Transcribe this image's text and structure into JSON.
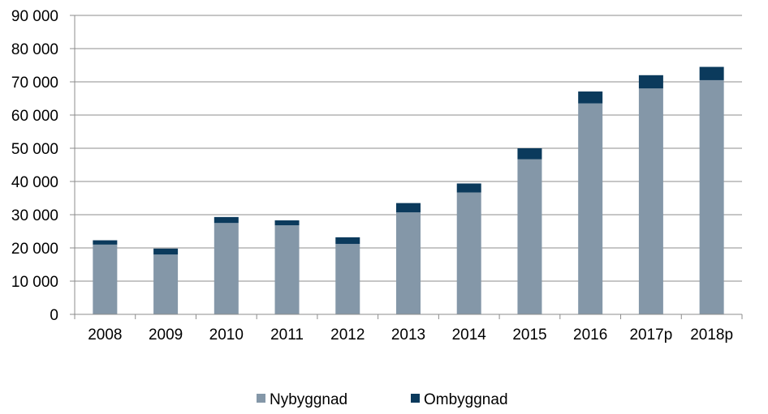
{
  "chart_data": {
    "type": "bar",
    "stacked": true,
    "categories": [
      "2008",
      "2009",
      "2010",
      "2011",
      "2012",
      "2013",
      "2014",
      "2015",
      "2016",
      "2017p",
      "2018p"
    ],
    "series": [
      {
        "name": "Nybyggnad",
        "color": "#8497a8",
        "values": [
          21000,
          18000,
          27500,
          26800,
          21200,
          30700,
          36700,
          46700,
          63500,
          68000,
          70500
        ]
      },
      {
        "name": "Ombyggnad",
        "color": "#0b3a5c",
        "values": [
          1300,
          1800,
          1800,
          1500,
          2000,
          2800,
          2700,
          3300,
          3600,
          4000,
          4000
        ]
      }
    ],
    "title": "",
    "xlabel": "",
    "ylabel": "",
    "ylim": [
      0,
      90000
    ],
    "yticks": [
      0,
      10000,
      20000,
      30000,
      40000,
      50000,
      60000,
      70000,
      80000,
      90000
    ],
    "ytick_labels": [
      "0",
      "10 000",
      "20 000",
      "30 000",
      "40 000",
      "50 000",
      "60 000",
      "70 000",
      "80 000",
      "90 000"
    ],
    "grid": true,
    "legend_position": "bottom"
  }
}
